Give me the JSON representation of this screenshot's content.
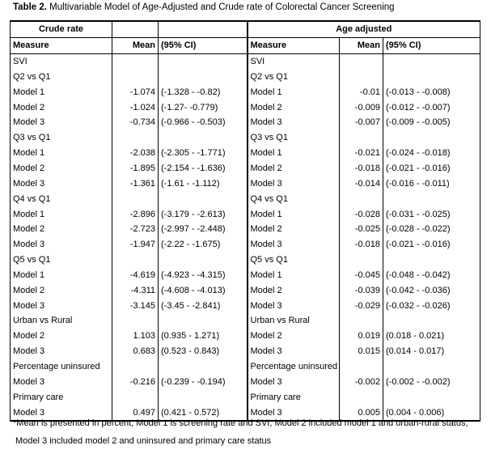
{
  "title_bold": "Table 2.",
  "title_rest": " Multivariable Model of Age-Adjusted and Crude rate of Colorectal Cancer Screening",
  "header": {
    "left_group": "Crude rate",
    "right_group": "Age adjusted",
    "measure": "Measure",
    "mean": "Mean",
    "ci": "(95% CI)"
  },
  "rows": [
    {
      "type": "section",
      "label": "SVI"
    },
    {
      "type": "group",
      "label": "Q2 vs Q1"
    },
    {
      "type": "model",
      "label": "Model 1",
      "c_mean": "-1.074",
      "c_ci": "(-1.328 -  -0.82)",
      "a_mean": "-0.01",
      "a_ci": "(-0.013 -  -0.008)"
    },
    {
      "type": "model",
      "label": "Model 2",
      "c_mean": "-1.024",
      "c_ci": "(-1.27-  -0.779)",
      "a_mean": "-0.009",
      "a_ci": "(-0.012 -  -0.007)"
    },
    {
      "type": "model",
      "label": "Model 3",
      "c_mean": "-0.734",
      "c_ci": "(-0.966 -  -0.503)",
      "a_mean": "-0.007",
      "a_ci": "(-0.009 -  -0.005)"
    },
    {
      "type": "group",
      "label": "Q3 vs Q1"
    },
    {
      "type": "model",
      "label": "Model 1",
      "c_mean": "-2.038",
      "c_ci": "(-2.305 -  -1.771)",
      "a_mean": "-0.021",
      "a_ci": "(-0.024 -  -0.018)"
    },
    {
      "type": "model",
      "label": "Model 2",
      "c_mean": "-1.895",
      "c_ci": "(-2.154 -  -1.636)",
      "a_mean": "-0.018",
      "a_ci": "(-0.021 -  -0.016)"
    },
    {
      "type": "model",
      "label": "Model 3",
      "c_mean": "-1.361",
      "c_ci": "(-1.61 -  -1.112)",
      "a_mean": "-0.014",
      "a_ci": "(-0.016 -  -0.011)"
    },
    {
      "type": "group",
      "label": "Q4 vs Q1"
    },
    {
      "type": "model",
      "label": "Model 1",
      "c_mean": "-2.896",
      "c_ci": "(-3.179 -  -2.613)",
      "a_mean": "-0.028",
      "a_ci": "(-0.031 -  -0.025)"
    },
    {
      "type": "model",
      "label": "Model 2",
      "c_mean": "-2.723",
      "c_ci": "(-2.997 -  -2.448)",
      "a_mean": "-0.025",
      "a_ci": "(-0.028 -  -0.022)"
    },
    {
      "type": "model",
      "label": "Model 3",
      "c_mean": "-1.947",
      "c_ci": "(-2.22 -  -1.675)",
      "a_mean": "-0.018",
      "a_ci": "(-0.021 -  -0.016)"
    },
    {
      "type": "group",
      "label": "Q5 vs Q1"
    },
    {
      "type": "model",
      "label": "Model 1",
      "c_mean": "-4.619",
      "c_ci": "(-4.923 -  -4.315)",
      "a_mean": "-0.045",
      "a_ci": "(-0.048 -  -0.042)"
    },
    {
      "type": "model",
      "label": "Model 2",
      "c_mean": "-4.311",
      "c_ci": "(-4.608 -  -4.013)",
      "a_mean": "-0.039",
      "a_ci": "(-0.042 -  -0.036)"
    },
    {
      "type": "model",
      "label": "Model 3",
      "c_mean": "-3.145",
      "c_ci": "(-3.45 -  -2.841)",
      "a_mean": "-0.029",
      "a_ci": "(-0.032 -  -0.026)"
    },
    {
      "type": "section",
      "label": "Urban vs Rural"
    },
    {
      "type": "submodel",
      "label": "Model 2",
      "c_mean": "1.103",
      "c_ci": "(0.935 -  1.271)",
      "a_mean": "0.019",
      "a_ci": "(0.018 -  0.021)"
    },
    {
      "type": "submodel",
      "label": "Model 3",
      "c_mean": "0.683",
      "c_ci": "(0.523 -  0.843)",
      "a_mean": "0.015",
      "a_ci": "(0.014 -  0.017)"
    },
    {
      "type": "section",
      "label": "Percentage uninsured"
    },
    {
      "type": "submodel",
      "label": "Model 3",
      "c_mean": "-0.216",
      "c_ci": "(-0.239 -  -0.194)",
      "a_mean": "-0.002",
      "a_ci": "(-0.002 -  -0.002)"
    },
    {
      "type": "section",
      "label": "Primary care"
    },
    {
      "type": "submodel",
      "label": "Model 3",
      "c_mean": "0.497",
      "c_ci": "(0.421 -  0.572)",
      "a_mean": "0.005",
      "a_ci": "(0.004 -  0.006)"
    }
  ],
  "footnote_1": "*Mean is presented in percent; Model 1 is screening rate and SVI; Model 2 included model 1 and urban-rural status;",
  "footnote_2": "Model 3 included model 2 and uninsured and primary care status"
}
